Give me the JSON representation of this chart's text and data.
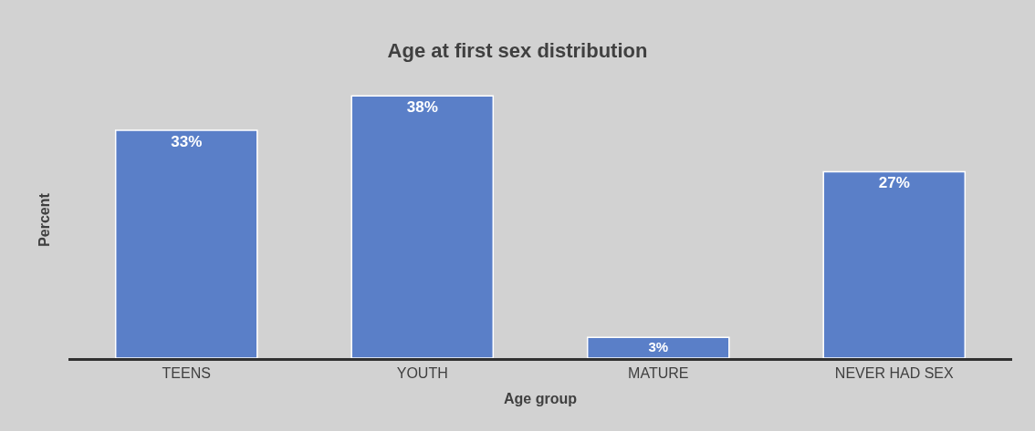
{
  "chart_data": {
    "type": "bar",
    "title": "Age at first sex distribution",
    "xlabel": "Age group",
    "ylabel": "Percent",
    "categories": [
      "TEENS",
      "YOUTH",
      "MATURE",
      "NEVER HAD SEX"
    ],
    "values": [
      33,
      38,
      3,
      27
    ],
    "value_labels": [
      "33%",
      "38%",
      "3%",
      "27%"
    ],
    "color": "#5a7fc8",
    "grid": false,
    "legend": false
  }
}
